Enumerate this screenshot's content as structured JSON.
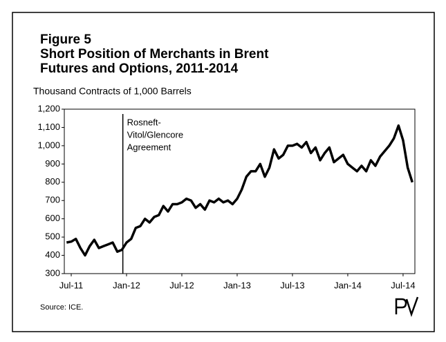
{
  "chart_data": {
    "type": "line",
    "title": [
      "Figure 5",
      "Short Position of Merchants in Brent",
      "Futures and Options, 2011-2014"
    ],
    "y_label": "Thousand Contracts of 1,000 Barrels",
    "source": "Source: ICE.",
    "x": [
      -0.5,
      0,
      0.5,
      1,
      1.5,
      2,
      2.5,
      3,
      3.5,
      4,
      4.5,
      5,
      5.5,
      6,
      6.5,
      7,
      7.5,
      8,
      8.5,
      9,
      9.5,
      10,
      10.5,
      11,
      11.5,
      12,
      12.5,
      13,
      13.5,
      14,
      14.5,
      15,
      15.5,
      16,
      16.5,
      17,
      17.5,
      18,
      18.5,
      19,
      19.5,
      20,
      20.5,
      21,
      21.5,
      22,
      22.5,
      23,
      23.5,
      24,
      24.5,
      25,
      25.5,
      26,
      26.5,
      27,
      27.5,
      28,
      28.5,
      29,
      29.5,
      30,
      30.5,
      31,
      31.5,
      32,
      32.5,
      33,
      33.5,
      34,
      34.5,
      35,
      35.5,
      36,
      36.5,
      37
    ],
    "values": [
      470,
      475,
      490,
      440,
      400,
      450,
      485,
      440,
      450,
      460,
      470,
      420,
      430,
      470,
      490,
      550,
      560,
      600,
      580,
      610,
      620,
      670,
      640,
      680,
      680,
      690,
      710,
      700,
      660,
      680,
      650,
      700,
      690,
      710,
      690,
      700,
      680,
      710,
      760,
      830,
      860,
      860,
      900,
      830,
      880,
      980,
      930,
      950,
      1000,
      1000,
      1010,
      990,
      1020,
      960,
      990,
      920,
      960,
      990,
      910,
      930,
      950,
      900,
      880,
      860,
      890,
      860,
      920,
      890,
      940,
      970,
      1000,
      1040,
      1110,
      1030,
      880,
      800
    ],
    "color": "#000000",
    "xlim": [
      -0.75,
      37.28
    ],
    "xticks": [
      {
        "value": 0,
        "label": "Jul-11"
      },
      {
        "value": 6,
        "label": "Jan-12"
      },
      {
        "value": 12,
        "label": "Jul-12"
      },
      {
        "value": 18,
        "label": "Jan-13"
      },
      {
        "value": 24,
        "label": "Jul-13"
      },
      {
        "value": 30,
        "label": "Jan-14"
      },
      {
        "value": 36,
        "label": "Jul-14"
      }
    ],
    "ylim": [
      300,
      1200
    ],
    "yticks": [
      300,
      400,
      500,
      600,
      700,
      800,
      900,
      {
        "value": 1000,
        "label": "1,000"
      },
      {
        "value": 1100,
        "label": "1,100"
      },
      {
        "value": 1200,
        "label": "1,200"
      }
    ],
    "annotation": {
      "x": 5.6,
      "lines": [
        "Rosneft-",
        "Vitol/Glencore",
        "Agreement"
      ]
    }
  }
}
